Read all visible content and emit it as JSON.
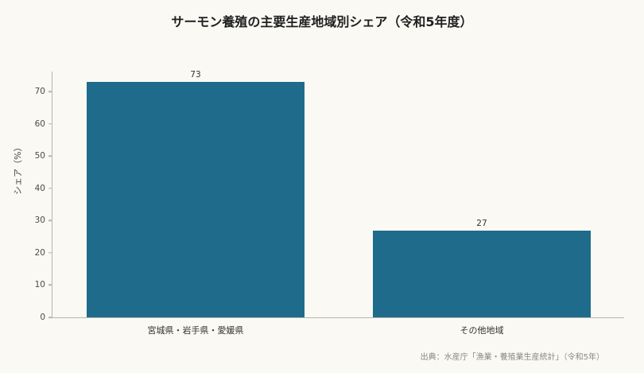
{
  "chart_data": {
    "type": "bar",
    "title": "サーモン養殖の主要生産地域別シェア（令和5年度）",
    "categories": [
      "宮城県・岩手県・愛媛県",
      "その他地域"
    ],
    "values": [
      73,
      27
    ],
    "xlabel": "",
    "ylabel": "シェア（%）",
    "ylim": [
      0,
      76.5
    ],
    "yticks": [
      0,
      10,
      20,
      30,
      40,
      50,
      60,
      70
    ],
    "grid": false,
    "bar_color": "#1e6b8c",
    "source": "出典：水産庁「漁業・養殖業生産統計」（令和5年）"
  }
}
